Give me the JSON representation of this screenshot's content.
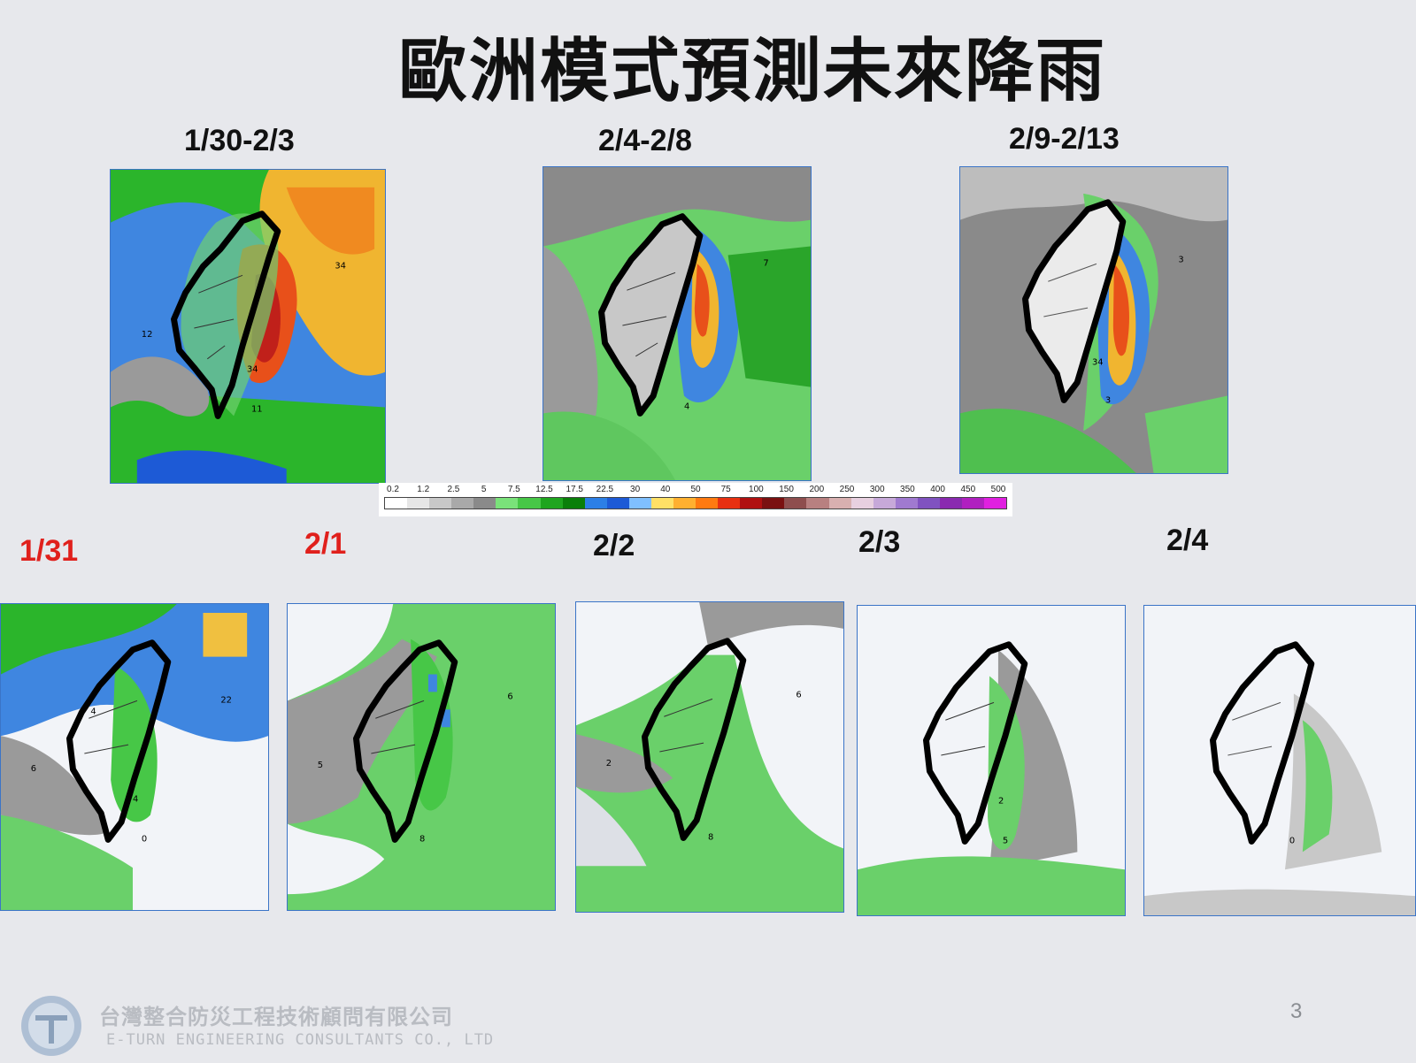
{
  "title": "歐洲模式預測未來降雨",
  "top_panels": [
    {
      "label": "1/30-2/3",
      "label_color": "#111111"
    },
    {
      "label": "2/4-2/8",
      "label_color": "#111111"
    },
    {
      "label": "2/9-2/13",
      "label_color": "#111111"
    }
  ],
  "bottom_panels": [
    {
      "label": "1/31",
      "label_color": "#e0201c"
    },
    {
      "label": "2/1",
      "label_color": "#e0201c"
    },
    {
      "label": "2/2",
      "label_color": "#111111"
    },
    {
      "label": "2/3",
      "label_color": "#111111"
    },
    {
      "label": "2/4",
      "label_color": "#111111"
    }
  ],
  "map_annotations": {
    "p0": [
      "34",
      "34",
      "12",
      "11"
    ],
    "p1": [
      "7",
      "4"
    ],
    "p2": [
      "3",
      "34",
      "3"
    ],
    "p3": [
      "4",
      "22",
      "4",
      "6",
      "0"
    ],
    "p4": [
      "6",
      "5",
      "8"
    ],
    "p5": [
      "6",
      "2",
      "8"
    ],
    "p6": [
      "2",
      "5"
    ],
    "p7": [
      "0"
    ]
  },
  "colorbar": {
    "ticks": [
      "0.2",
      "1.2",
      "2.5",
      "5",
      "7.5",
      "12.5",
      "17.5",
      "22.5",
      "30",
      "40",
      "50",
      "75",
      "100",
      "150",
      "200",
      "250",
      "300",
      "350",
      "400",
      "450",
      "500"
    ],
    "colors": [
      "#ffffff",
      "#e6e6e6",
      "#c8c8c8",
      "#a9a9a9",
      "#8a8a8a",
      "#7ae27a",
      "#47c747",
      "#1fa51f",
      "#0a7f0a",
      "#2c7fe6",
      "#1d5ad6",
      "#7fbfff",
      "#ffe066",
      "#ffb030",
      "#ff7a10",
      "#e83010",
      "#b01010",
      "#7a1010",
      "#8e4e4e",
      "#b88080",
      "#d8b0b0",
      "#e8d0e0",
      "#c7a9d9",
      "#a07ad0",
      "#8052c0",
      "#8a2ab0",
      "#b020c0",
      "#e020e0"
    ]
  },
  "footer": {
    "company_cn": "台灣整合防災工程技術顧問有限公司",
    "company_en": "E-TURN ENGINEERING CONSULTANTS CO., LTD",
    "page_number": "3"
  }
}
